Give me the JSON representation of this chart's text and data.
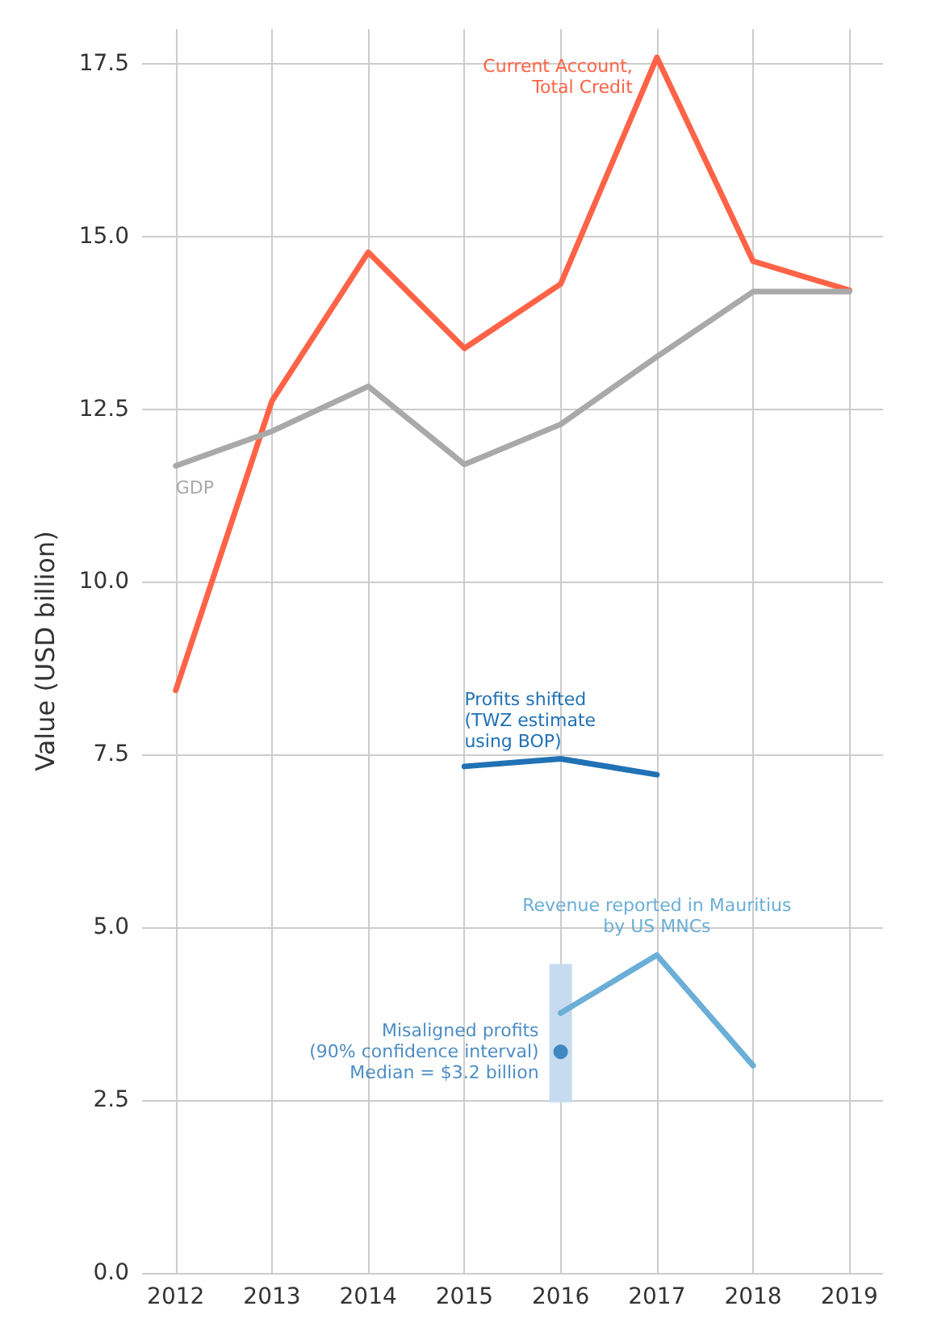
{
  "chart_data": {
    "type": "line",
    "ylabel": "Value (USD billion)",
    "xlim": [
      2011.65,
      2019.35
    ],
    "xticks": [
      2012,
      2013,
      2014,
      2015,
      2016,
      2017,
      2018,
      2019
    ],
    "ylim": [
      0,
      18
    ],
    "yticks": [
      {
        "value": 0,
        "label": "0.0"
      },
      2.5,
      {
        "value": 5,
        "label": "5.0"
      },
      7.5,
      {
        "value": 10,
        "label": "10.0"
      },
      12.5,
      {
        "value": 15,
        "label": "15.0"
      },
      17.5
    ],
    "grid": true,
    "series": [
      {
        "name": "Current Account,\nTotal Credit",
        "color": "#ff6347",
        "x": [
          2012,
          2013,
          2014,
          2015,
          2016,
          2017,
          2018,
          2019
        ],
        "values": [
          8.43,
          12.62,
          14.77,
          13.38,
          14.31,
          17.59,
          14.64,
          14.22
        ]
      },
      {
        "name": "GDP",
        "color": "#a9a9a9",
        "x": [
          2012,
          2013,
          2014,
          2015,
          2016,
          2017,
          2018,
          2019
        ],
        "values": [
          11.68,
          12.18,
          12.83,
          11.7,
          12.28,
          13.26,
          14.2,
          14.2
        ]
      },
      {
        "name": "Profits shifted\n(TWZ estimate\nusing BOP)",
        "color": "#2171b5",
        "x": [
          2015,
          2016,
          2017
        ],
        "values": [
          7.33,
          7.44,
          7.21
        ]
      },
      {
        "name": "Revenue reported in Mauritius\nby US MNCs",
        "color": "#6baed6",
        "x": [
          2016,
          2017,
          2018
        ],
        "values": [
          3.76,
          4.6,
          3.0
        ]
      },
      {
        "name": "Misaligned profits\n(90% confidence interval)\nMedian = $3.2 billion",
        "type": "scatter",
        "color": "#2171b5",
        "x": [
          2016
        ],
        "values": [
          3.2
        ],
        "errors": [
          [
            2.47,
            4.47
          ]
        ]
      }
    ]
  }
}
